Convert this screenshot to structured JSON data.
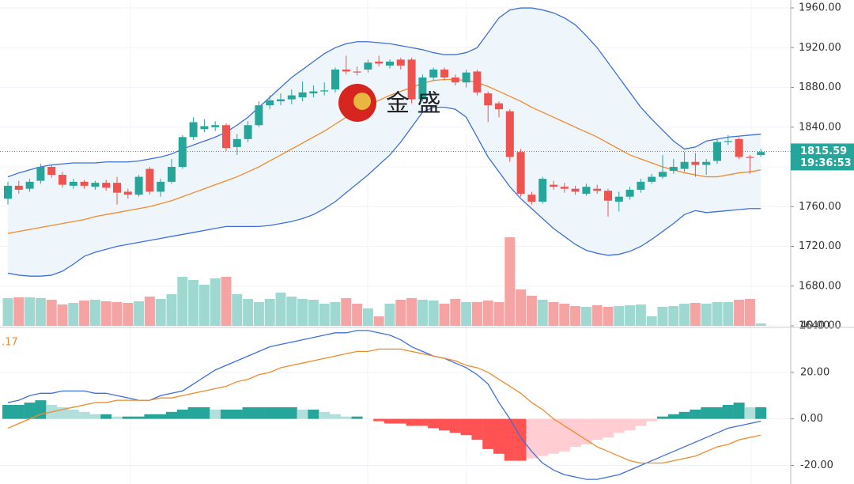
{
  "chart_data": {
    "type": "candlestick",
    "open": [
      1768,
      1781,
      1778,
      1786,
      1800,
      1792,
      1781,
      1785,
      1780,
      1784,
      1784,
      1775,
      1772,
      1798,
      1775,
      1785,
      1800,
      1830,
      1838,
      1840,
      1842,
      1820,
      1828,
      1842,
      1862,
      1866,
      1868,
      1870,
      1874,
      1876,
      1878,
      1898,
      1896,
      1898,
      1906,
      1902,
      1908,
      1908,
      1868,
      1890,
      1898,
      1890,
      1885,
      1896,
      1874,
      1864,
      1856,
      1815,
      1772,
      1765,
      1782,
      1780,
      1778,
      1773,
      1778,
      1776,
      1765,
      1770,
      1777,
      1785,
      1790,
      1796,
      1798,
      1805,
      1802,
      1806,
      1825,
      1828,
      1810,
      1812
    ],
    "high": [
      1785,
      1786,
      1788,
      1803,
      1802,
      1795,
      1788,
      1787,
      1786,
      1787,
      1790,
      1778,
      1792,
      1800,
      1788,
      1808,
      1832,
      1850,
      1848,
      1846,
      1844,
      1833,
      1846,
      1866,
      1872,
      1874,
      1878,
      1886,
      1882,
      1885,
      1900,
      1912,
      1901,
      1908,
      1912,
      1908,
      1910,
      1910,
      1893,
      1900,
      1900,
      1893,
      1898,
      1898,
      1876,
      1866,
      1858,
      1818,
      1775,
      1790,
      1786,
      1784,
      1781,
      1783,
      1782,
      1778,
      1775,
      1780,
      1788,
      1793,
      1812,
      1808,
      1815,
      1814,
      1808,
      1828,
      1832,
      1830,
      1812,
      1818
    ],
    "low": [
      1762,
      1773,
      1775,
      1783,
      1789,
      1779,
      1778,
      1778,
      1777,
      1776,
      1762,
      1768,
      1770,
      1772,
      1770,
      1783,
      1798,
      1827,
      1835,
      1836,
      1816,
      1812,
      1825,
      1840,
      1858,
      1862,
      1863,
      1866,
      1870,
      1872,
      1875,
      1893,
      1892,
      1895,
      1901,
      1899,
      1898,
      1864,
      1866,
      1887,
      1887,
      1882,
      1880,
      1872,
      1845,
      1850,
      1805,
      1770,
      1762,
      1763,
      1777,
      1774,
      1772,
      1771,
      1773,
      1750,
      1755,
      1767,
      1774,
      1783,
      1788,
      1793,
      1795,
      1790,
      1792,
      1803,
      1822,
      1808,
      1793,
      1810
    ],
    "close": [
      1781,
      1777,
      1785,
      1800,
      1792,
      1782,
      1785,
      1781,
      1784,
      1779,
      1774,
      1772,
      1790,
      1775,
      1785,
      1800,
      1830,
      1845,
      1841,
      1842,
      1819,
      1828,
      1842,
      1862,
      1867,
      1868,
      1872,
      1875,
      1876,
      1877,
      1898,
      1896,
      1895,
      1905,
      1904,
      1906,
      1902,
      1868,
      1890,
      1898,
      1890,
      1885,
      1895,
      1875,
      1862,
      1858,
      1810,
      1773,
      1765,
      1788,
      1780,
      1778,
      1775,
      1780,
      1776,
      1766,
      1770,
      1777,
      1785,
      1790,
      1795,
      1800,
      1805,
      1802,
      1805,
      1825,
      1826,
      1810,
      1809,
      1815
    ],
    "volume": [
      35,
      36,
      36,
      35,
      33,
      27,
      29,
      32,
      33,
      31,
      30,
      29,
      31,
      37,
      34,
      40,
      62,
      58,
      52,
      60,
      62,
      40,
      34,
      30,
      34,
      42,
      37,
      34,
      33,
      28,
      30,
      35,
      28,
      22,
      12,
      28,
      33,
      35,
      33,
      32,
      28,
      34,
      30,
      30,
      32,
      30,
      112,
      46,
      38,
      33,
      30,
      28,
      25,
      24,
      26,
      24,
      25,
      26,
      27,
      12,
      24,
      25,
      28,
      29,
      28,
      30,
      30,
      33,
      34,
      3
    ],
    "up_color": "#26a69a",
    "down_color": "#ef5350",
    "volume_up_color": "#9fd8d1",
    "volume_down_color": "#f5a3a3",
    "bollinger": {
      "color": "#3f6fd8",
      "middle_color": "#f08a2c",
      "upper": [
        1790,
        1794,
        1797,
        1800,
        1802,
        1803,
        1804,
        1804,
        1804,
        1805,
        1805,
        1805,
        1806,
        1808,
        1810,
        1813,
        1818,
        1822,
        1826,
        1830,
        1835,
        1842,
        1850,
        1860,
        1870,
        1880,
        1890,
        1898,
        1906,
        1914,
        1920,
        1924,
        1926,
        1926,
        1925,
        1924,
        1922,
        1920,
        1918,
        1915,
        1913,
        1913,
        1915,
        1920,
        1935,
        1950,
        1958,
        1960,
        1960,
        1958,
        1955,
        1950,
        1943,
        1932,
        1920,
        1905,
        1890,
        1875,
        1860,
        1848,
        1837,
        1826,
        1818,
        1820,
        1826,
        1828,
        1830,
        1831,
        1832,
        1833
      ],
      "middle": [
        1733,
        1735,
        1737,
        1739,
        1741,
        1743,
        1745,
        1747,
        1750,
        1752,
        1754,
        1756,
        1758,
        1760,
        1763,
        1766,
        1770,
        1774,
        1778,
        1782,
        1786,
        1790,
        1795,
        1800,
        1806,
        1812,
        1818,
        1824,
        1830,
        1836,
        1843,
        1850,
        1856,
        1862,
        1867,
        1872,
        1876,
        1880,
        1884,
        1887,
        1888,
        1888,
        1887,
        1885,
        1881,
        1876,
        1871,
        1866,
        1860,
        1855,
        1850,
        1845,
        1840,
        1835,
        1830,
        1824,
        1818,
        1812,
        1808,
        1804,
        1800,
        1797,
        1794,
        1792,
        1790,
        1790,
        1792,
        1794,
        1795,
        1797
      ],
      "lower": [
        1693,
        1691,
        1690,
        1690,
        1691,
        1695,
        1702,
        1710,
        1714,
        1717,
        1720,
        1722,
        1724,
        1726,
        1728,
        1730,
        1732,
        1734,
        1736,
        1738,
        1740,
        1740,
        1740,
        1740,
        1741,
        1743,
        1745,
        1748,
        1752,
        1758,
        1765,
        1774,
        1783,
        1792,
        1802,
        1812,
        1825,
        1840,
        1855,
        1860,
        1860,
        1858,
        1850,
        1830,
        1810,
        1795,
        1780,
        1768,
        1758,
        1748,
        1738,
        1730,
        1722,
        1716,
        1713,
        1711,
        1712,
        1715,
        1720,
        1727,
        1735,
        1743,
        1752,
        1756,
        1754,
        1755,
        1756,
        1757,
        1758,
        1758
      ]
    },
    "ylim": [
      1640,
      1968
    ],
    "yticks": [
      {
        "value": 1640,
        "label": "1640.00"
      },
      {
        "value": 1680,
        "label": "1680.00"
      },
      {
        "value": 1720,
        "label": "1720.00"
      },
      {
        "value": 1760,
        "label": "1760.00"
      },
      {
        "value": 1800,
        "label": "1800.00"
      },
      {
        "value": 1840,
        "label": "1840.00"
      },
      {
        "value": 1880,
        "label": "1880.00"
      },
      {
        "value": 1920,
        "label": "1920.00"
      },
      {
        "value": 1960,
        "label": "1960.00"
      }
    ],
    "last_price": 1815.59,
    "countdown": "19:36:53",
    "watermark": "金 盛",
    "macd": {
      "partial_label": ".17",
      "macd_color": "#3f6fd8",
      "signal_color": "#f08a2c",
      "macd": [
        7,
        8,
        10,
        11,
        11,
        12,
        12,
        12,
        11,
        11,
        10,
        9,
        8,
        8,
        10,
        11,
        12,
        15,
        18,
        21,
        23,
        25,
        27,
        29,
        31,
        32,
        33,
        34,
        35,
        36,
        37,
        37,
        38,
        38,
        37,
        36,
        34,
        31,
        29,
        27,
        26,
        24,
        22,
        19,
        15,
        7,
        0,
        -8,
        -14,
        -19,
        -22,
        -24,
        -25,
        -26,
        -26,
        -25,
        -24,
        -22,
        -20,
        -18,
        -16,
        -14,
        -12,
        -10,
        -8,
        -6,
        -4,
        -3,
        -2,
        -1
      ],
      "signal": [
        -4,
        -2,
        0,
        2,
        3,
        4,
        5,
        6,
        7,
        7,
        8,
        8,
        8,
        8,
        9,
        9,
        10,
        11,
        12,
        13,
        14,
        16,
        17,
        19,
        20,
        22,
        23,
        24,
        25,
        26,
        27,
        28,
        29,
        29,
        30,
        30,
        30,
        29,
        28,
        27,
        26,
        25,
        23,
        22,
        20,
        17,
        14,
        11,
        7,
        4,
        0,
        -3,
        -6,
        -9,
        -12,
        -14,
        -16,
        -18,
        -19,
        -19,
        -19,
        -18,
        -17,
        -16,
        -14,
        -12,
        -11,
        -9,
        -8,
        -7
      ],
      "histogram": [
        6,
        6,
        7,
        8,
        6,
        5,
        4,
        3,
        2,
        2,
        1,
        1,
        1,
        2,
        2,
        3,
        4,
        5,
        5,
        4,
        4,
        4,
        5,
        5,
        5,
        5,
        5,
        4,
        4,
        3,
        2,
        1,
        1,
        0,
        -1,
        -2,
        -2,
        -3,
        -3,
        -4,
        -5,
        -6,
        -7,
        -9,
        -13,
        -15,
        -18,
        -18,
        -17,
        -16,
        -15,
        -14,
        -12,
        -11,
        -9,
        -8,
        -6,
        -5,
        -3,
        -1,
        1,
        2,
        3,
        4,
        5,
        5,
        6,
        7,
        5,
        5
      ],
      "hist_colors": [
        "#26a69a",
        "#b2dfdb",
        "#ff5252",
        "#ffcdd2"
      ],
      "ylim": [
        -28,
        40
      ],
      "yticks": [
        {
          "value": 40,
          "label": "40.00"
        },
        {
          "value": 20,
          "label": "20.00"
        },
        {
          "value": 0,
          "label": "0.00"
        },
        {
          "value": -20,
          "label": "-20.00"
        }
      ]
    }
  }
}
